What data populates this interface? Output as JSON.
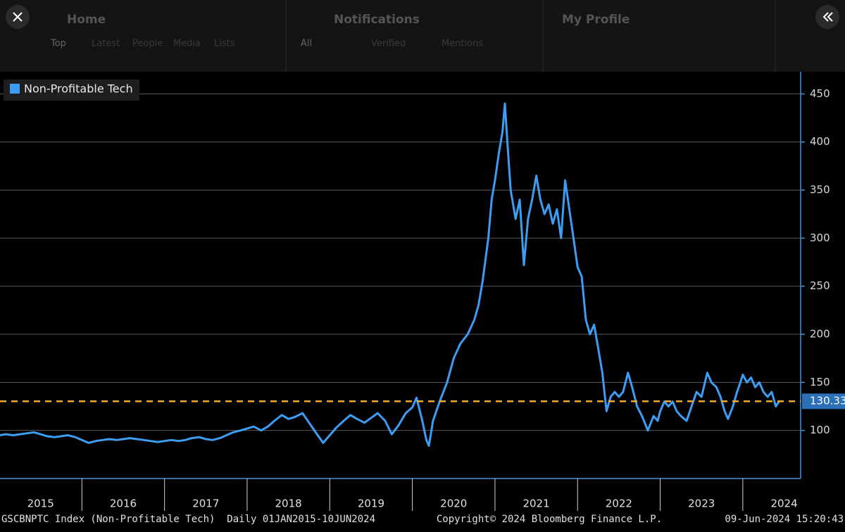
{
  "ui": {
    "columns": [
      {
        "title": "Home",
        "tabs": [
          "Top",
          "Latest",
          "People",
          "Media",
          "Lists"
        ]
      },
      {
        "title": "Notifications",
        "tabs": [
          "All",
          "Verified",
          "Mentions"
        ]
      },
      {
        "title": "My Profile",
        "tabs": []
      }
    ],
    "footer_left": "GSCBNPTC Index (Non-Profitable Tech)  Daily 01JAN2015-10JUN2024",
    "footer_center": "Copyright© 2024 Bloomberg Finance L.P.",
    "footer_right": "09-Jun-2024 15:20:43"
  },
  "chart_data": {
    "type": "line",
    "x": [
      2015.0,
      2015.08,
      2015.17,
      2015.25,
      2015.33,
      2015.42,
      2015.5,
      2015.58,
      2015.67,
      2015.75,
      2015.83,
      2015.92,
      2016.0,
      2016.08,
      2016.17,
      2016.25,
      2016.33,
      2016.42,
      2016.5,
      2016.58,
      2016.67,
      2016.75,
      2016.83,
      2016.92,
      2017.0,
      2017.08,
      2017.17,
      2017.25,
      2017.33,
      2017.42,
      2017.5,
      2017.58,
      2017.67,
      2017.75,
      2017.83,
      2017.92,
      2018.0,
      2018.08,
      2018.17,
      2018.25,
      2018.33,
      2018.42,
      2018.5,
      2018.58,
      2018.67,
      2018.75,
      2018.83,
      2018.92,
      2019.0,
      2019.08,
      2019.17,
      2019.25,
      2019.33,
      2019.42,
      2019.5,
      2019.58,
      2019.67,
      2019.75,
      2019.83,
      2019.92,
      2020.0,
      2020.05,
      2020.12,
      2020.17,
      2020.2,
      2020.25,
      2020.33,
      2020.42,
      2020.5,
      2020.58,
      2020.67,
      2020.75,
      2020.8,
      2020.85,
      2020.92,
      2020.96,
      2021.0,
      2021.05,
      2021.09,
      2021.12,
      2021.15,
      2021.19,
      2021.25,
      2021.3,
      2021.35,
      2021.4,
      2021.45,
      2021.5,
      2021.55,
      2021.6,
      2021.65,
      2021.7,
      2021.75,
      2021.8,
      2021.85,
      2021.9,
      2021.95,
      2022.0,
      2022.05,
      2022.1,
      2022.15,
      2022.2,
      2022.25,
      2022.3,
      2022.35,
      2022.4,
      2022.45,
      2022.5,
      2022.55,
      2022.61,
      2022.66,
      2022.72,
      2022.78,
      2022.85,
      2022.92,
      2022.97,
      2023.0,
      2023.05,
      2023.1,
      2023.15,
      2023.2,
      2023.25,
      2023.32,
      2023.38,
      2023.44,
      2023.5,
      2023.57,
      2023.62,
      2023.68,
      2023.73,
      2023.78,
      2023.82,
      2023.88,
      2023.93,
      2023.97,
      2024.0,
      2024.05,
      2024.1,
      2024.15,
      2024.2,
      2024.25,
      2024.3,
      2024.35,
      2024.4,
      2024.44
    ],
    "series": [
      {
        "name": "Non-Profitable Tech",
        "color": "#3d9df3",
        "values": [
          95,
          96,
          95,
          96,
          97,
          98,
          96,
          94,
          93,
          94,
          95,
          93,
          90,
          87,
          89,
          90,
          91,
          90,
          91,
          92,
          91,
          90,
          89,
          88,
          89,
          90,
          89,
          90,
          92,
          93,
          91,
          90,
          92,
          95,
          98,
          100,
          102,
          104,
          100,
          104,
          110,
          116,
          112,
          114,
          118,
          108,
          98,
          87,
          95,
          103,
          110,
          116,
          112,
          108,
          113,
          118,
          110,
          96,
          105,
          118,
          124,
          134,
          110,
          90,
          84,
          110,
          130,
          150,
          175,
          190,
          200,
          215,
          230,
          255,
          300,
          340,
          360,
          390,
          410,
          440,
          400,
          350,
          320,
          340,
          272,
          320,
          340,
          365,
          340,
          325,
          335,
          315,
          330,
          300,
          360,
          330,
          300,
          270,
          260,
          215,
          200,
          210,
          185,
          160,
          120,
          135,
          140,
          135,
          140,
          160,
          145,
          125,
          115,
          100,
          115,
          110,
          120,
          130,
          125,
          130,
          120,
          115,
          110,
          125,
          140,
          135,
          160,
          150,
          145,
          135,
          120,
          112,
          125,
          140,
          150,
          158,
          150,
          155,
          145,
          150,
          140,
          135,
          140,
          125,
          130.33
        ]
      }
    ],
    "xlim": [
      2015,
      2024.7
    ],
    "xticks": [
      {
        "value": 2015,
        "label": "2015"
      },
      {
        "value": 2016,
        "label": "2016"
      },
      {
        "value": 2017,
        "label": "2017"
      },
      {
        "value": 2018,
        "label": "2018"
      },
      {
        "value": 2019,
        "label": "2019"
      },
      {
        "value": 2020,
        "label": "2020"
      },
      {
        "value": 2021,
        "label": "2021"
      },
      {
        "value": 2022,
        "label": "2022"
      },
      {
        "value": 2023,
        "label": "2023"
      },
      {
        "value": 2024,
        "label": "2024"
      }
    ],
    "ylim": [
      50,
      473
    ],
    "yticks": [
      100,
      150,
      200,
      250,
      300,
      350,
      400,
      450
    ],
    "grid": true,
    "last_value_color": "#f0a830",
    "legend": "top-left"
  }
}
